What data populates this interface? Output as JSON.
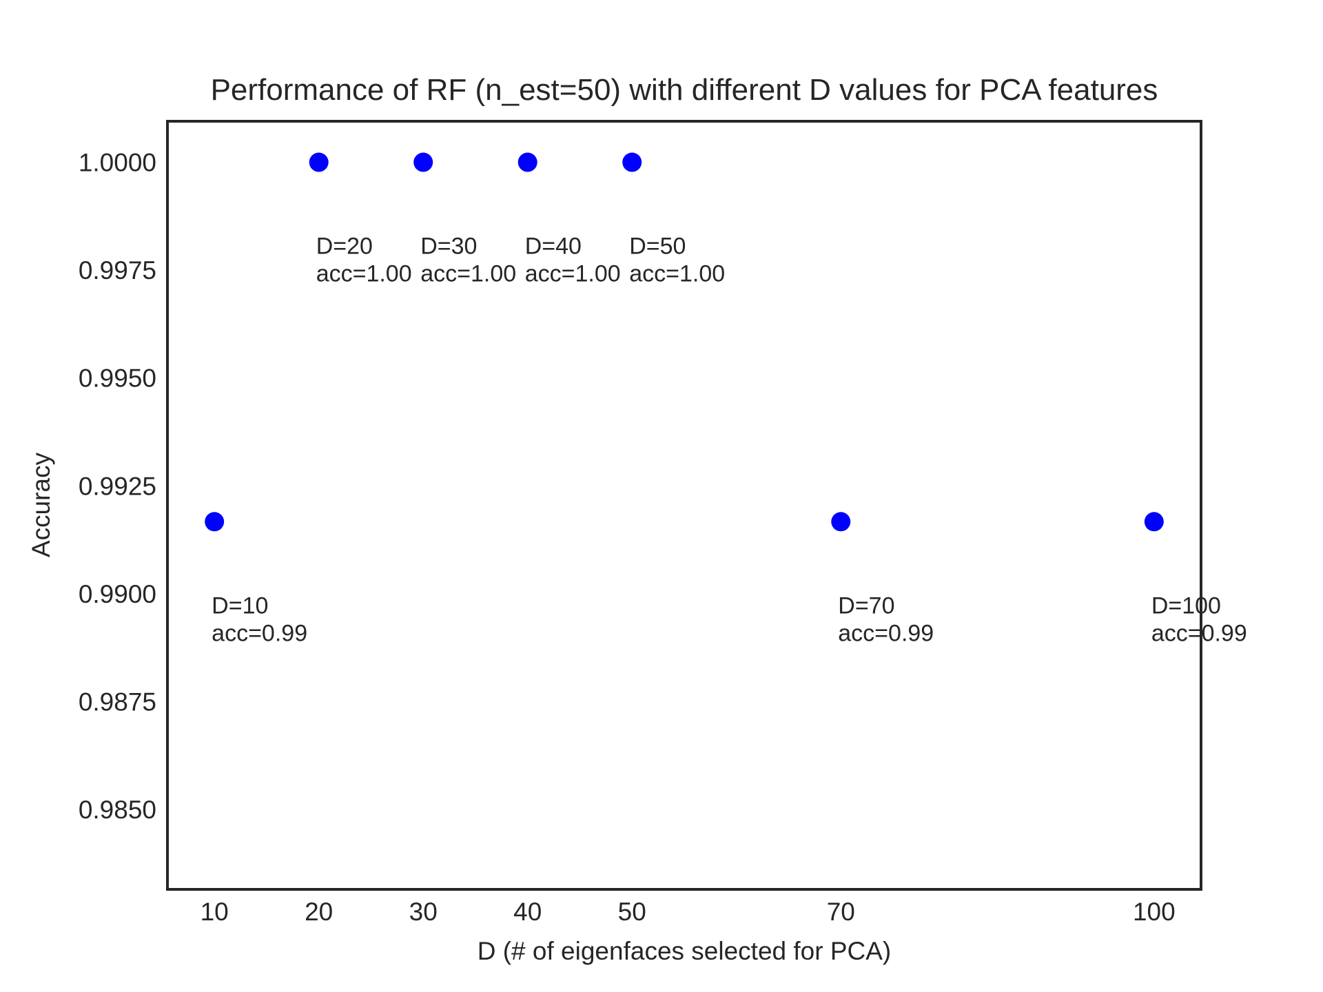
{
  "chart_data": {
    "type": "scatter",
    "title": "Performance of RF (n_est=50) with different D values for PCA features",
    "xlabel": "D (# of eigenfaces selected for PCA)",
    "ylabel": "Accuracy",
    "x": [
      10,
      20,
      30,
      40,
      50,
      70,
      100
    ],
    "y": [
      0.99167,
      1.0,
      1.0,
      1.0,
      1.0,
      0.99167,
      0.99167
    ],
    "point_labels": [
      [
        "D=10",
        "acc=0.99"
      ],
      [
        "D=20",
        "acc=1.00"
      ],
      [
        "D=30",
        "acc=1.00"
      ],
      [
        "D=40",
        "acc=1.00"
      ],
      [
        "D=50",
        "acc=1.00"
      ],
      [
        "D=70",
        "acc=0.99"
      ],
      [
        "D=100",
        "acc=0.99"
      ]
    ],
    "xticks": [
      "10",
      "20",
      "30",
      "40",
      "50",
      "70",
      "100"
    ],
    "yticks": [
      "0.9850",
      "0.9875",
      "0.9900",
      "0.9925",
      "0.9950",
      "0.9975",
      "1.0000"
    ],
    "xlim": [
      5.5,
      104.5
    ],
    "ylim": [
      0.98315,
      1.00095
    ],
    "grid": false,
    "marker_color": "#0000ff",
    "axis_color": "#262626"
  }
}
